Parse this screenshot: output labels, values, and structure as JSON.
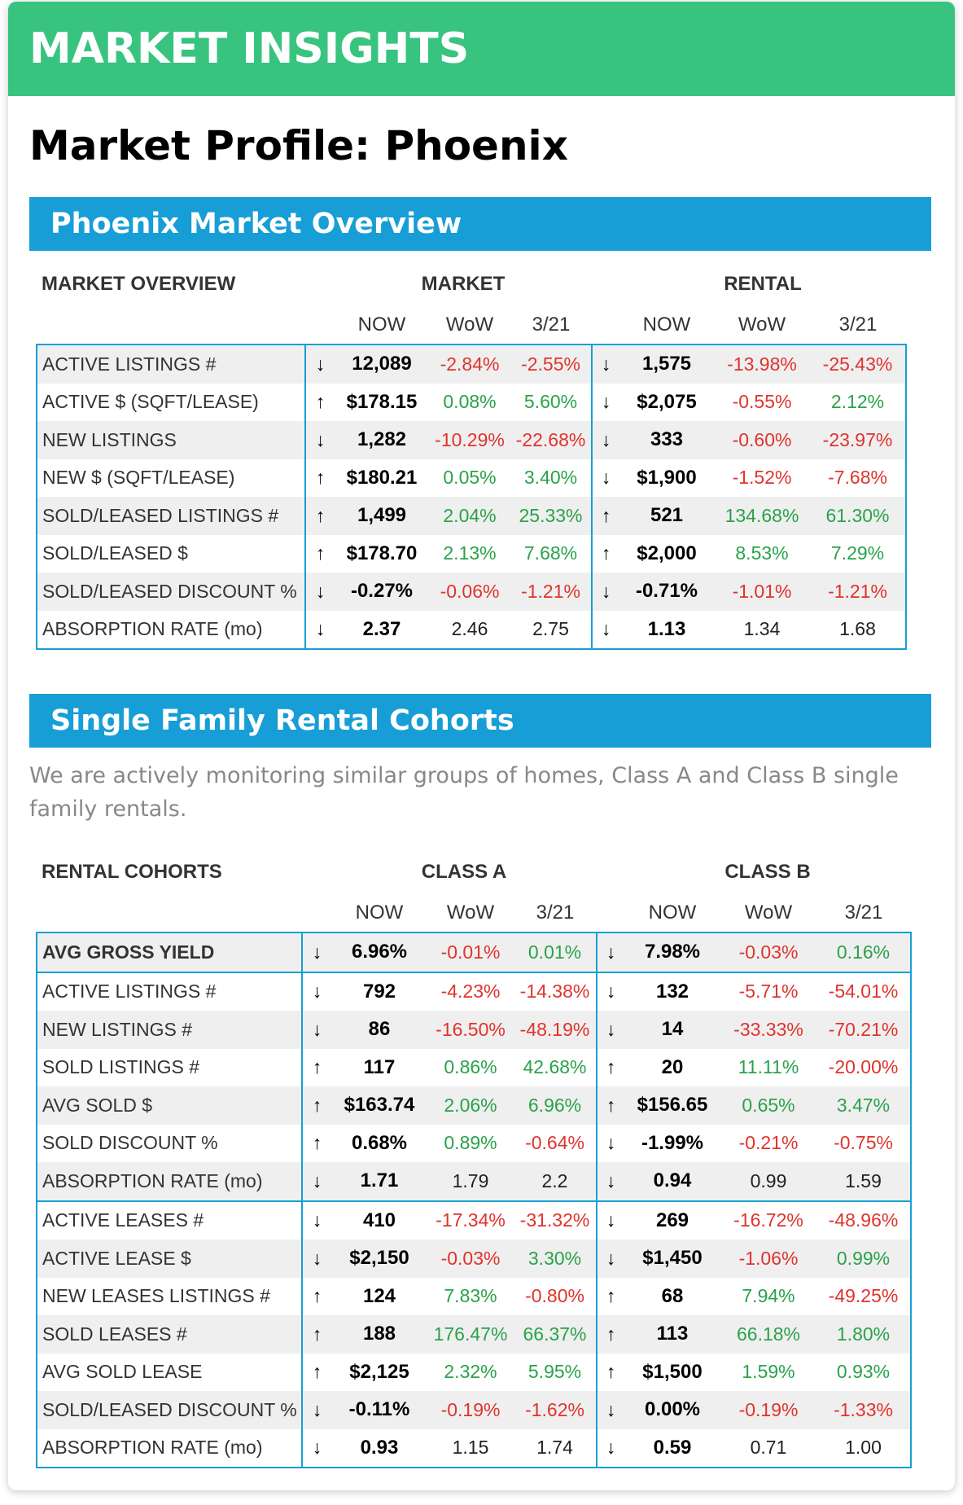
{
  "banner": {
    "title": "MARKET INSIGHTS"
  },
  "page_title": "Market Profile: Phoenix",
  "colors": {
    "banner": "#38c47f",
    "section": "#179ed6",
    "negative": "#e0332c",
    "positive": "#2aa24a"
  },
  "overview": {
    "section_title": "Phoenix Market Overview",
    "header": {
      "label": "MARKET OVERVIEW",
      "group_a": "MARKET",
      "group_b": "RENTAL"
    },
    "subheader": {
      "now": "NOW",
      "wow": "WoW",
      "prior": "3/21"
    },
    "rows": [
      {
        "label": "ACTIVE LISTINGS #",
        "a_arrow": "↓",
        "a_now": "12,089",
        "a_wow": "-2.84%",
        "a_prior": "-2.55%",
        "b_arrow": "↓",
        "b_now": "1,575",
        "b_wow": "-13.98%",
        "b_prior": "-25.43%"
      },
      {
        "label": "ACTIVE $ (SQFT/LEASE)",
        "a_arrow": "↑",
        "a_now": "$178.15",
        "a_wow": "0.08%",
        "a_prior": "5.60%",
        "b_arrow": "↓",
        "b_now": "$2,075",
        "b_wow": "-0.55%",
        "b_prior": "2.12%"
      },
      {
        "label": "NEW LISTINGS",
        "a_arrow": "↓",
        "a_now": "1,282",
        "a_wow": "-10.29%",
        "a_prior": "-22.68%",
        "b_arrow": "↓",
        "b_now": "333",
        "b_wow": "-0.60%",
        "b_prior": "-23.97%"
      },
      {
        "label": "NEW $ (SQFT/LEASE)",
        "a_arrow": "↑",
        "a_now": "$180.21",
        "a_wow": "0.05%",
        "a_prior": "3.40%",
        "b_arrow": "↓",
        "b_now": "$1,900",
        "b_wow": "-1.52%",
        "b_prior": "-7.68%"
      },
      {
        "label": "SOLD/LEASED LISTINGS #",
        "a_arrow": "↑",
        "a_now": "1,499",
        "a_wow": "2.04%",
        "a_prior": "25.33%",
        "b_arrow": "↑",
        "b_now": "521",
        "b_wow": "134.68%",
        "b_prior": "61.30%"
      },
      {
        "label": "SOLD/LEASED $",
        "a_arrow": "↑",
        "a_now": "$178.70",
        "a_wow": "2.13%",
        "a_prior": "7.68%",
        "b_arrow": "↑",
        "b_now": "$2,000",
        "b_wow": "8.53%",
        "b_prior": "7.29%"
      },
      {
        "label": "SOLD/LEASED DISCOUNT %",
        "a_arrow": "↓",
        "a_now": "-0.27%",
        "a_wow": "-0.06%",
        "a_prior": "-1.21%",
        "b_arrow": "↓",
        "b_now": "-0.71%",
        "b_wow": "-1.01%",
        "b_prior": "-1.21%"
      },
      {
        "label": "ABSORPTION RATE (mo)",
        "a_arrow": "↓",
        "a_now": "2.37",
        "a_wow": "2.46",
        "a_prior": "2.75",
        "b_arrow": "↓",
        "b_now": "1.13",
        "b_wow": "1.34",
        "b_prior": "1.68"
      }
    ]
  },
  "cohorts": {
    "section_title": "Single Family Rental Cohorts",
    "description": "We are actively monitoring similar groups of homes, Class A and Class B single family rentals.",
    "header": {
      "label": "RENTAL COHORTS",
      "group_a": "CLASS A",
      "group_b": "CLASS B"
    },
    "subheader": {
      "now": "NOW",
      "wow": "WoW",
      "prior": "3/21"
    },
    "rows": [
      {
        "label": "AVG GROSS YIELD",
        "a_arrow": "↓",
        "a_now": "6.96%",
        "a_wow": "-0.01%",
        "a_prior": "0.01%",
        "b_arrow": "↓",
        "b_now": "7.98%",
        "b_wow": "-0.03%",
        "b_prior": "0.16%"
      },
      {
        "label": "ACTIVE LISTINGS #",
        "a_arrow": "↓",
        "a_now": "792",
        "a_wow": "-4.23%",
        "a_prior": "-14.38%",
        "b_arrow": "↓",
        "b_now": "132",
        "b_wow": "-5.71%",
        "b_prior": "-54.01%"
      },
      {
        "label": "NEW LISTINGS #",
        "a_arrow": "↓",
        "a_now": "86",
        "a_wow": "-16.50%",
        "a_prior": "-48.19%",
        "b_arrow": "↓",
        "b_now": "14",
        "b_wow": "-33.33%",
        "b_prior": "-70.21%"
      },
      {
        "label": "SOLD LISTINGS #",
        "a_arrow": "↑",
        "a_now": "117",
        "a_wow": "0.86%",
        "a_prior": "42.68%",
        "b_arrow": "↑",
        "b_now": "20",
        "b_wow": "11.11%",
        "b_prior": "-20.00%"
      },
      {
        "label": "AVG SOLD $",
        "a_arrow": "↑",
        "a_now": "$163.74",
        "a_wow": "2.06%",
        "a_prior": "6.96%",
        "b_arrow": "↑",
        "b_now": "$156.65",
        "b_wow": "0.65%",
        "b_prior": "3.47%"
      },
      {
        "label": "SOLD DISCOUNT %",
        "a_arrow": "↑",
        "a_now": "0.68%",
        "a_wow": "0.89%",
        "a_prior": "-0.64%",
        "b_arrow": "↓",
        "b_now": "-1.99%",
        "b_wow": "-0.21%",
        "b_prior": "-0.75%"
      },
      {
        "label": "ABSORPTION RATE (mo)",
        "a_arrow": "↓",
        "a_now": "1.71",
        "a_wow": "1.79",
        "a_prior": "2.2",
        "b_arrow": "↓",
        "b_now": "0.94",
        "b_wow": "0.99",
        "b_prior": "1.59"
      },
      {
        "label": "ACTIVE LEASES #",
        "a_arrow": "↓",
        "a_now": "410",
        "a_wow": "-17.34%",
        "a_prior": "-31.32%",
        "b_arrow": "↓",
        "b_now": "269",
        "b_wow": "-16.72%",
        "b_prior": "-48.96%"
      },
      {
        "label": "ACTIVE LEASE $",
        "a_arrow": "↓",
        "a_now": "$2,150",
        "a_wow": "-0.03%",
        "a_prior": "3.30%",
        "b_arrow": "↓",
        "b_now": "$1,450",
        "b_wow": "-1.06%",
        "b_prior": "0.99%"
      },
      {
        "label": "NEW LEASES LISTINGS #",
        "a_arrow": "↑",
        "a_now": "124",
        "a_wow": "7.83%",
        "a_prior": "-0.80%",
        "b_arrow": "↑",
        "b_now": "68",
        "b_wow": "7.94%",
        "b_prior": "-49.25%"
      },
      {
        "label": "SOLD LEASES #",
        "a_arrow": "↑",
        "a_now": "188",
        "a_wow": "176.47%",
        "a_prior": "66.37%",
        "b_arrow": "↑",
        "b_now": "113",
        "b_wow": "66.18%",
        "b_prior": "1.80%"
      },
      {
        "label": "AVG SOLD LEASE",
        "a_arrow": "↑",
        "a_now": "$2,125",
        "a_wow": "2.32%",
        "a_prior": "5.95%",
        "b_arrow": "↑",
        "b_now": "$1,500",
        "b_wow": "1.59%",
        "b_prior": "0.93%"
      },
      {
        "label": "SOLD/LEASED DISCOUNT %",
        "a_arrow": "↓",
        "a_now": "-0.11%",
        "a_wow": "-0.19%",
        "a_prior": "-1.62%",
        "b_arrow": "↓",
        "b_now": "0.00%",
        "b_wow": "-0.19%",
        "b_prior": "-1.33%"
      },
      {
        "label": "ABSORPTION RATE (mo)",
        "a_arrow": "↓",
        "a_now": "0.93",
        "a_wow": "1.15",
        "a_prior": "1.74",
        "b_arrow": "↓",
        "b_now": "0.59",
        "b_wow": "0.71",
        "b_prior": "1.00"
      }
    ]
  }
}
